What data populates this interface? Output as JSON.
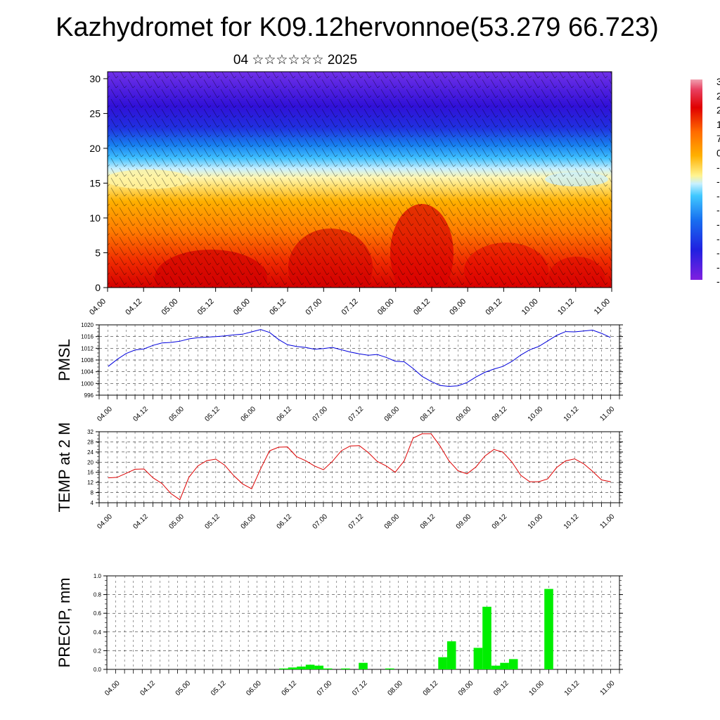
{
  "title": "Kazhydromet for K09.12hervonnoe(53.279 66.723)",
  "subtitle": "04 ☆☆☆☆☆☆ 2025",
  "colors": {
    "pmsl_line": "#0000dd",
    "temp_line": "#dd0000",
    "precip_bar": "#00ee00"
  },
  "chart_data": [
    {
      "type": "heatmap",
      "title": "",
      "xlabel": "",
      "ylabel": "",
      "x_ticks": [
        "04.00",
        "04.12",
        "05.00",
        "05.12",
        "06.00",
        "06.12",
        "07.00",
        "07.12",
        "08.00",
        "08.12",
        "09.00",
        "09.12",
        "10.00",
        "10.12",
        "11.00"
      ],
      "y_ticks": [
        0,
        5,
        10,
        15,
        20,
        25,
        30
      ],
      "ylim": [
        0,
        31
      ],
      "colormap": "rainbow, violet (low) to red/pink (high)",
      "colorbar_labels": [
        "3",
        "2",
        "2",
        "1",
        "7",
        "0",
        "-",
        "-",
        "-",
        "-",
        "-",
        "-",
        "-",
        "-",
        "-"
      ],
      "overlay": "wind barbs"
    },
    {
      "type": "line",
      "ylabel": "PMSL",
      "x_ticks": [
        "04.00",
        "04.12",
        "05.00",
        "05.12",
        "06.00",
        "06.12",
        "07.00",
        "07.12",
        "08.00",
        "08.12",
        "09.00",
        "09.12",
        "10.00",
        "10.12",
        "11.00"
      ],
      "y_ticks": [
        996,
        1000,
        1004,
        1008,
        1012,
        1016,
        1020
      ],
      "ylim": [
        996,
        1020
      ],
      "x": [
        0,
        3,
        6,
        9,
        12,
        15,
        18,
        21,
        24,
        27,
        30,
        33,
        36,
        39,
        42,
        45,
        48,
        51,
        54,
        57,
        60,
        63,
        66,
        69,
        72,
        75,
        78,
        81,
        84,
        87,
        90,
        93,
        96,
        99,
        102,
        105,
        108,
        111,
        114,
        117,
        120,
        123,
        126,
        129,
        132,
        135,
        138,
        141,
        144,
        147,
        150,
        153,
        156,
        159,
        162,
        165,
        168
      ],
      "series": [
        {
          "name": "",
          "values": [
            1005.8,
            1008.2,
            1010.2,
            1011.4,
            1011.8,
            1013.0,
            1013.8,
            1014.0,
            1014.4,
            1015.2,
            1015.6,
            1015.8,
            1016.0,
            1016.2,
            1016.6,
            1016.8,
            1017.6,
            1018.4,
            1017.4,
            1015.0,
            1013.2,
            1012.6,
            1012.3,
            1011.7,
            1011.9,
            1012.3,
            1011.5,
            1010.7,
            1010.1,
            1009.6,
            1009.9,
            1008.9,
            1007.6,
            1007.4,
            1005.1,
            1002.4,
            1000.7,
            999.3,
            999.0,
            999.2,
            1000.3,
            1002.2,
            1003.8,
            1004.9,
            1005.8,
            1007.5,
            1009.7,
            1011.5,
            1012.6,
            1014.5,
            1016.4,
            1017.7,
            1017.6,
            1017.9,
            1018.2,
            1017.1,
            1015.7
          ]
        }
      ]
    },
    {
      "type": "line",
      "ylabel": "TEMP at 2 M",
      "x_ticks": [
        "04.00",
        "04.12",
        "05.00",
        "05.12",
        "06.00",
        "06.12",
        "07.00",
        "07.12",
        "08.00",
        "08.12",
        "09.00",
        "09.12",
        "10.00",
        "10.12",
        "11.00"
      ],
      "y_ticks": [
        4,
        8,
        12,
        16,
        20,
        24,
        28,
        32
      ],
      "ylim": [
        4,
        32
      ],
      "x": [
        0,
        3,
        6,
        9,
        12,
        15,
        18,
        21,
        24,
        27,
        30,
        33,
        36,
        39,
        42,
        45,
        48,
        51,
        54,
        57,
        60,
        63,
        66,
        69,
        72,
        75,
        78,
        81,
        84,
        87,
        90,
        93,
        96,
        99,
        102,
        105,
        108,
        111,
        114,
        117,
        120,
        123,
        126,
        129,
        132,
        135,
        138,
        141,
        144,
        147,
        150,
        153,
        156,
        159,
        162,
        165,
        168
      ],
      "series": [
        {
          "name": "",
          "values": [
            13.8,
            14.0,
            15.6,
            17.2,
            17.3,
            13.8,
            11.6,
            7.6,
            5.2,
            14.0,
            18.5,
            20.6,
            21.2,
            18.8,
            14.7,
            11.4,
            9.5,
            17.4,
            24.5,
            25.9,
            26.0,
            22.2,
            20.6,
            18.5,
            17.0,
            20.3,
            24.5,
            26.4,
            26.5,
            23.8,
            20.3,
            18.5,
            16.0,
            20.5,
            29.5,
            31.2,
            31.2,
            26.4,
            20.5,
            16.6,
            15.4,
            18.1,
            22.4,
            25.0,
            24.0,
            20.1,
            14.8,
            12.3,
            12.3,
            13.4,
            17.9,
            20.5,
            21.3,
            19.4,
            16.4,
            13.0,
            12.3
          ]
        }
      ]
    },
    {
      "type": "bar",
      "ylabel": "PRECIP, mm",
      "x_ticks": [
        "04.00",
        "04.12",
        "05.00",
        "05.12",
        "06.00",
        "06.12",
        "07.00",
        "07.12",
        "08.00",
        "08.12",
        "09.00",
        "09.12",
        "10.00",
        "10.12",
        "11.00"
      ],
      "y_ticks": [
        "0.0",
        "0.2",
        "0.4",
        "0.6",
        "0.8",
        "1.0"
      ],
      "ylim": [
        0,
        1.0
      ],
      "x": [
        57,
        60,
        63,
        66,
        69,
        72,
        78,
        84,
        87,
        93,
        99,
        111,
        114,
        123,
        126,
        129,
        132,
        135,
        147
      ],
      "values": [
        0.01,
        0.02,
        0.03,
        0.05,
        0.04,
        0.01,
        0.01,
        0.07,
        0.0,
        0.01,
        0.0,
        0.13,
        0.3,
        0.23,
        0.67,
        0.04,
        0.07,
        0.11,
        0.86
      ]
    }
  ]
}
